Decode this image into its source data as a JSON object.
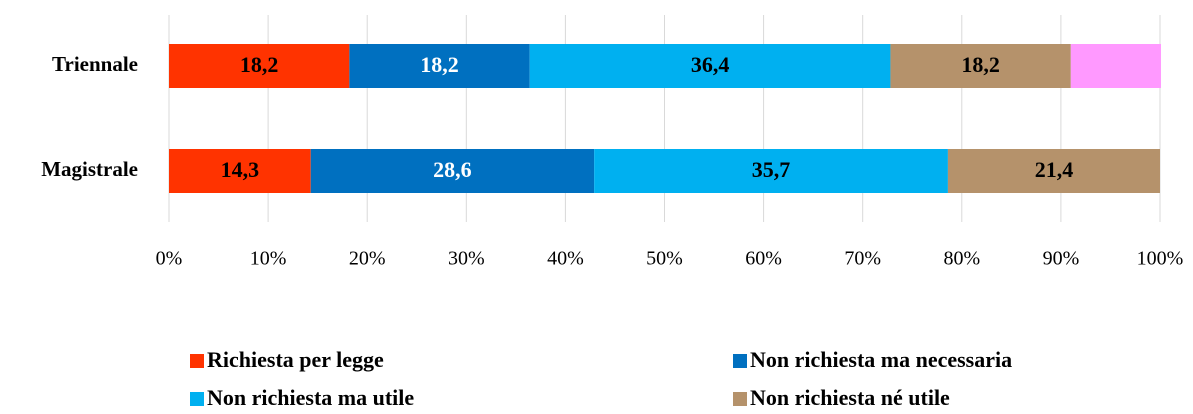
{
  "chart_data": {
    "type": "stacked_barh",
    "categories": [
      "Triennale",
      "Magistrale"
    ],
    "series": [
      {
        "name": "Richiesta per legge",
        "color": "#FF3300",
        "label_color": "#000000",
        "values": [
          18.2,
          14.3
        ],
        "value_labels": [
          "18,2",
          "14,3"
        ]
      },
      {
        "name": "Non richiesta ma necessaria",
        "color": "#0070C0",
        "label_color": "#FFFFFF",
        "values": [
          18.2,
          28.6
        ],
        "value_labels": [
          "18,2",
          "28,6"
        ]
      },
      {
        "name": "Non richiesta ma utile",
        "color": "#00B0F0",
        "label_color": "#000000",
        "values": [
          36.4,
          35.7
        ],
        "value_labels": [
          "36,4",
          "35,7"
        ]
      },
      {
        "name": "Non richiesta né utile",
        "color": "#B5926B",
        "label_color": "#000000",
        "values": [
          18.2,
          21.4
        ],
        "value_labels": [
          "18,2",
          "21,4"
        ]
      },
      {
        "color": "#FF99FF",
        "values": [
          9.1,
          0
        ]
      }
    ],
    "xlim": [
      0,
      100
    ],
    "xticks": [
      {
        "value": 0,
        "label": "0%"
      },
      {
        "value": 10,
        "label": "10%"
      },
      {
        "value": 20,
        "label": "20%"
      },
      {
        "value": 30,
        "label": "30%"
      },
      {
        "value": 40,
        "label": "40%"
      },
      {
        "value": 50,
        "label": "50%"
      },
      {
        "value": 60,
        "label": "60%"
      },
      {
        "value": 70,
        "label": "70%"
      },
      {
        "value": 80,
        "label": "80%"
      },
      {
        "value": 90,
        "label": "90%"
      },
      {
        "value": 100,
        "label": "100%"
      }
    ],
    "grid": true,
    "legend": "bottom"
  }
}
